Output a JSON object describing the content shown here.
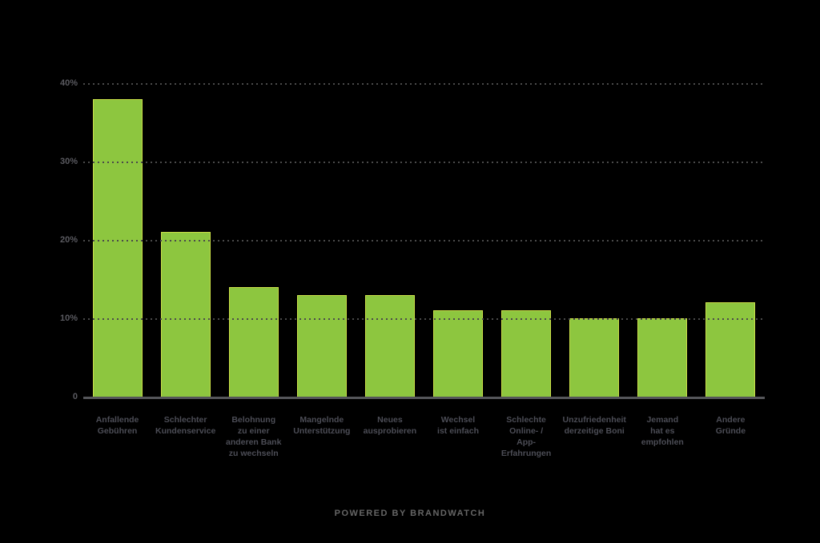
{
  "footer": {
    "credit": "POWERED BY BRANDWATCH"
  },
  "chart_data": {
    "type": "bar",
    "title": "",
    "xlabel": "",
    "ylabel": "",
    "categories": [
      "Anfallende\nGebühren",
      "Schlechter\nKundenservice",
      "Belohnung\nzu einer\nanderen Bank\nzu wechseln",
      "Mangelnde\nUnterstützung",
      "Neues\nausprobieren",
      "Wechsel\nist einfach",
      "Schlechte\nOnline- /\nApp-Erfahrungen",
      "Unzufriedenheit\nderzeitige Boni",
      "Jemand\nhat es\nempfohlen",
      "Andere\nGründe"
    ],
    "values": [
      38,
      21,
      14,
      13,
      13,
      11,
      11,
      10,
      10,
      12
    ],
    "unit": "%",
    "ylim": [
      0,
      40
    ],
    "yticks": [
      {
        "value": 40,
        "label": "40%"
      },
      {
        "value": 30,
        "label": "30%"
      },
      {
        "value": 20,
        "label": "20%"
      },
      {
        "value": 10,
        "label": "10%"
      },
      {
        "value": 0,
        "label": "0"
      }
    ],
    "grid": "horizontal-dotted",
    "legend": "none",
    "colors": {
      "background": "#000000",
      "bar_fill": "#8dc63f",
      "bar_edge": "#c9de48",
      "gridline": "#4a4a4a",
      "axis_line": "#55565a",
      "tick_label": "#5a5a60",
      "category_label": "#4c4d56",
      "footer_text": "#666666"
    }
  }
}
